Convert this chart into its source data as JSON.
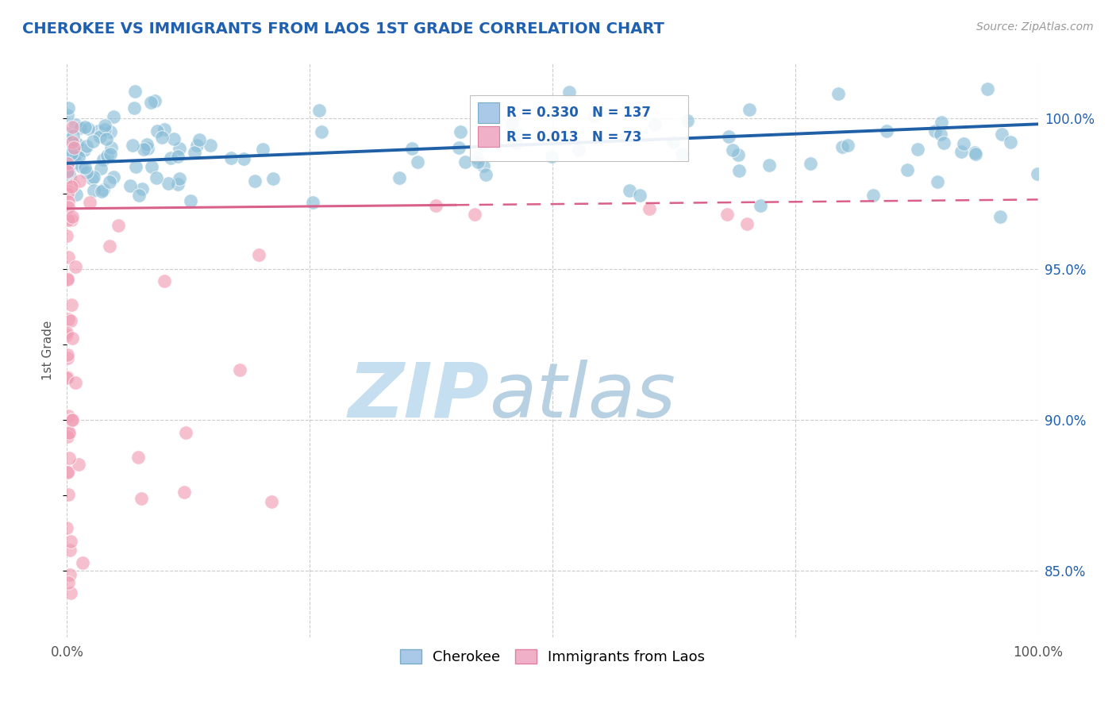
{
  "title": "CHEROKEE VS IMMIGRANTS FROM LAOS 1ST GRADE CORRELATION CHART",
  "source": "Source: ZipAtlas.com",
  "ylabel": "1st Grade",
  "legend_labels": [
    "Cherokee",
    "Immigrants from Laos"
  ],
  "blue_R": 0.33,
  "blue_N": 137,
  "pink_R": 0.013,
  "pink_N": 73,
  "blue_color": "#89bdd8",
  "pink_color": "#f09db5",
  "trend_blue": "#1f5fa6",
  "trend_pink": "#d9608a",
  "xmin": 0.0,
  "xmax": 1.0,
  "ymin": 0.828,
  "ymax": 1.018,
  "right_yticks": [
    0.85,
    0.9,
    0.95,
    1.0
  ],
  "right_yticklabels": [
    "85.0%",
    "90.0%",
    "95.0%",
    "100.0%"
  ],
  "background_color": "#ffffff",
  "grid_color": "#cccccc",
  "title_color": "#2060b0",
  "source_color": "#999999",
  "axis_color": "#555555",
  "rn_color": "#2060b0",
  "watermark_zip_color": "#c5dff0",
  "watermark_atlas_color": "#b0cce0"
}
